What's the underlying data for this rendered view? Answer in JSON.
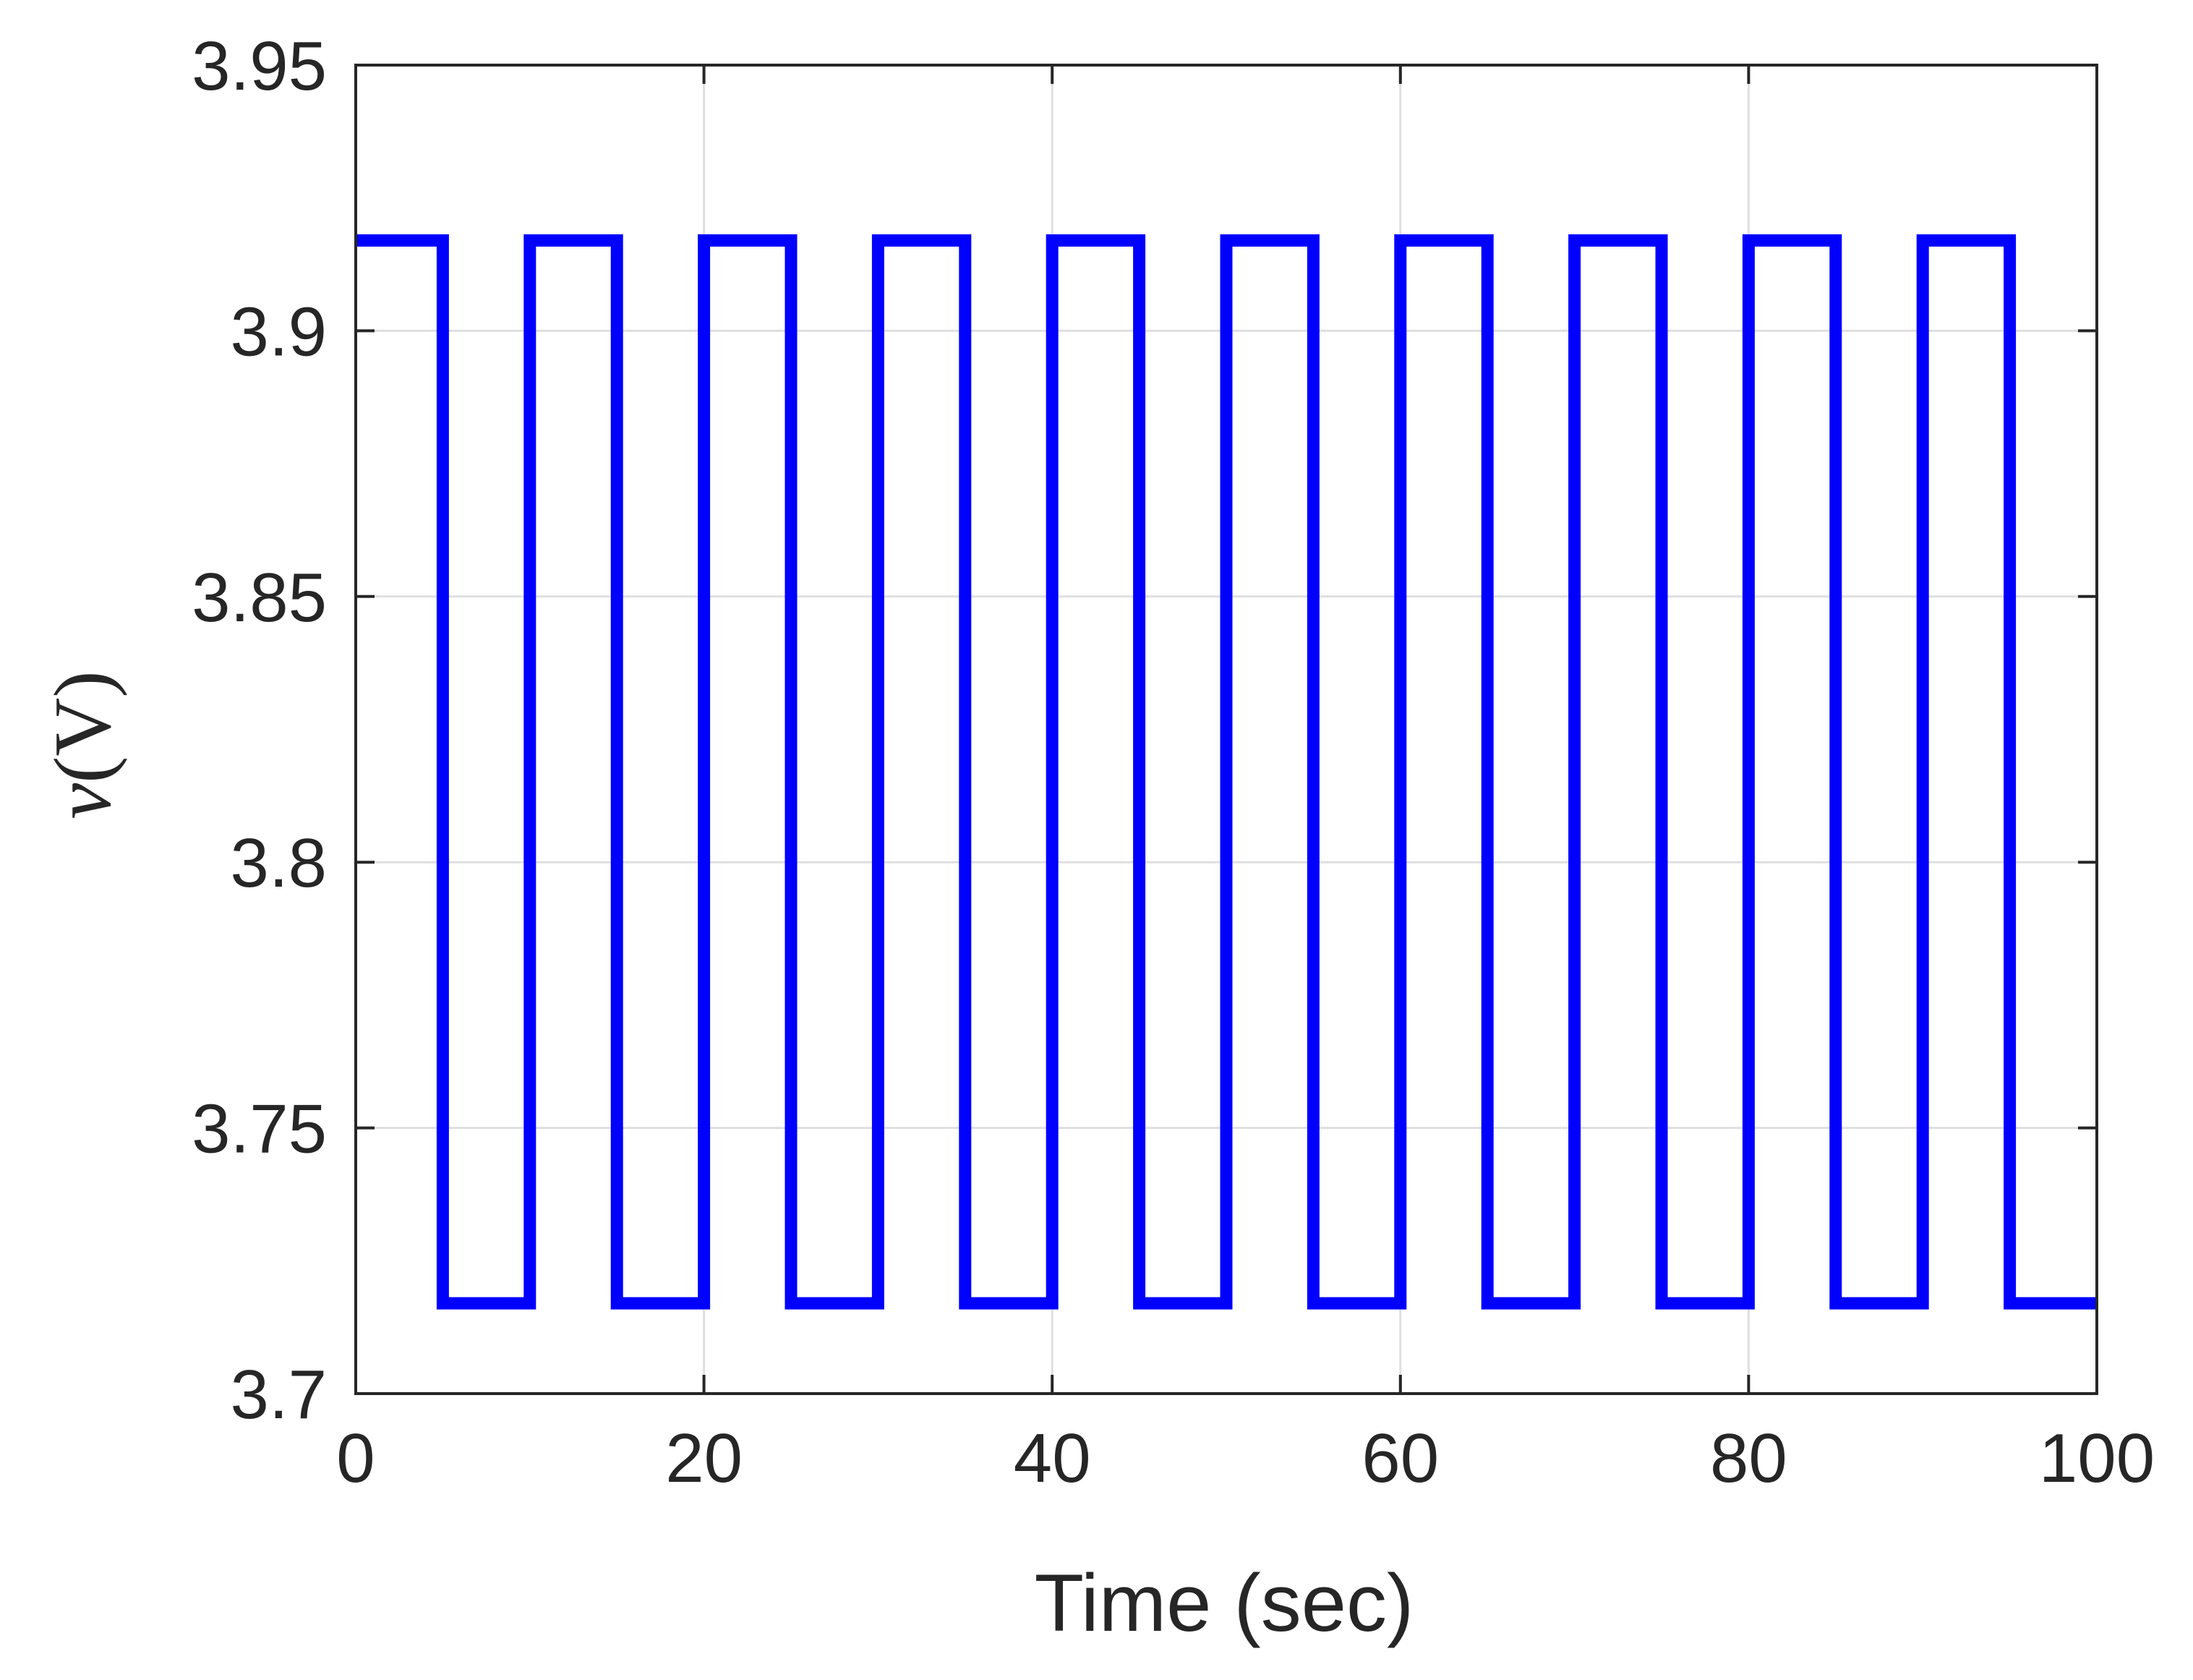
{
  "chart_data": {
    "type": "line",
    "title": "",
    "xlabel": "Time (sec)",
    "ylabel_symbol": "v",
    "ylabel_unit": "(V)",
    "xlim": [
      0,
      100
    ],
    "ylim": [
      3.7,
      3.95
    ],
    "xticks": [
      0,
      20,
      40,
      60,
      80,
      100
    ],
    "xtick_labels": [
      "0",
      "20",
      "40",
      "60",
      "80",
      "100"
    ],
    "yticks": [
      3.7,
      3.75,
      3.8,
      3.85,
      3.9,
      3.95
    ],
    "ytick_labels": [
      "3.7",
      "3.75",
      "3.8",
      "3.85",
      "3.9",
      "3.95"
    ],
    "grid": true,
    "series": [
      {
        "color": "#0000ff",
        "step": "post",
        "x": [
          0,
          5,
          10,
          15,
          20,
          25,
          30,
          35,
          40,
          45,
          50,
          55,
          60,
          65,
          70,
          75,
          80,
          85,
          90,
          95,
          100
        ],
        "y": [
          3.917,
          3.717,
          3.917,
          3.717,
          3.917,
          3.717,
          3.917,
          3.717,
          3.917,
          3.717,
          3.917,
          3.717,
          3.917,
          3.717,
          3.917,
          3.717,
          3.917,
          3.717,
          3.917,
          3.717,
          3.717
        ]
      }
    ]
  },
  "colors": {
    "axis": "#262626",
    "grid": "#dfdfdf",
    "series": "#0000ff"
  }
}
